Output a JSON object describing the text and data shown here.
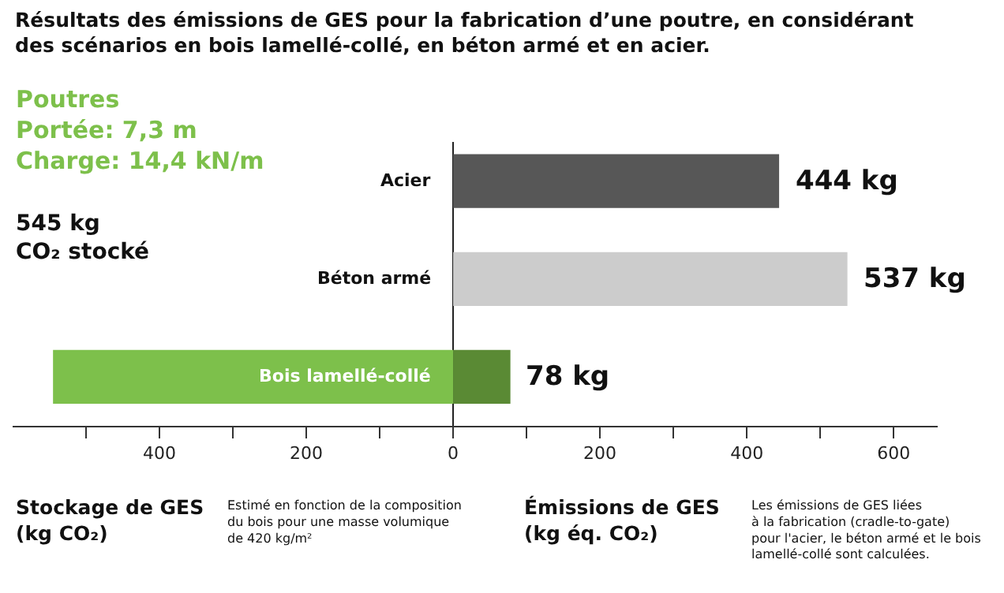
{
  "chart_data": {
    "type": "bar",
    "orientation": "horizontal",
    "stacked": true,
    "title": "Résultats des émissions de GES pour la fabrication d’une poutre, en considérant\ndes scénarios en bois lamellé-collé, en béton armé et en acier.",
    "subtitle": "Poutres\nPortée: 7,3 m\nCharge: 14,4 kN/m",
    "categories": [
      "Acier",
      "Béton armé",
      "Bois lamellé-collé"
    ],
    "series": [
      {
        "colors": [
          "#575757",
          "#cccccc",
          "#5a8a34"
        ],
        "values": [
          444,
          537,
          78
        ],
        "value_labels": [
          "444 kg",
          "537 kg",
          "78 kg"
        ]
      },
      {
        "color": "#7dc04b",
        "values": [
          null,
          null,
          -545
        ]
      }
    ],
    "xlim": [
      -600,
      660
    ],
    "xticks": [
      {
        "value": -500,
        "label": null
      },
      {
        "value": -400,
        "label": "400"
      },
      {
        "value": -300,
        "label": null
      },
      {
        "value": -200,
        "label": "200"
      },
      {
        "value": -100,
        "label": null
      },
      0,
      {
        "value": 100,
        "label": null
      },
      200,
      {
        "value": 300,
        "label": null
      },
      400,
      {
        "value": 500,
        "label": null
      },
      600
    ],
    "grid": false,
    "annotations": [
      "545 kg\nCO₂ stocké",
      "Stockage de GES\n(kg CO₂)",
      "Estimé en fonction de la composition\ndu bois pour une masse volumique\nde 420 kg/m²",
      "Émissions de GES\n(kg éq. CO₂)",
      "Les émissions de GES liées\nà la fabrication (cradle-to-gate)\npour l'acier, le béton armé et le bois\nlamellé-collé sont calculées."
    ]
  }
}
